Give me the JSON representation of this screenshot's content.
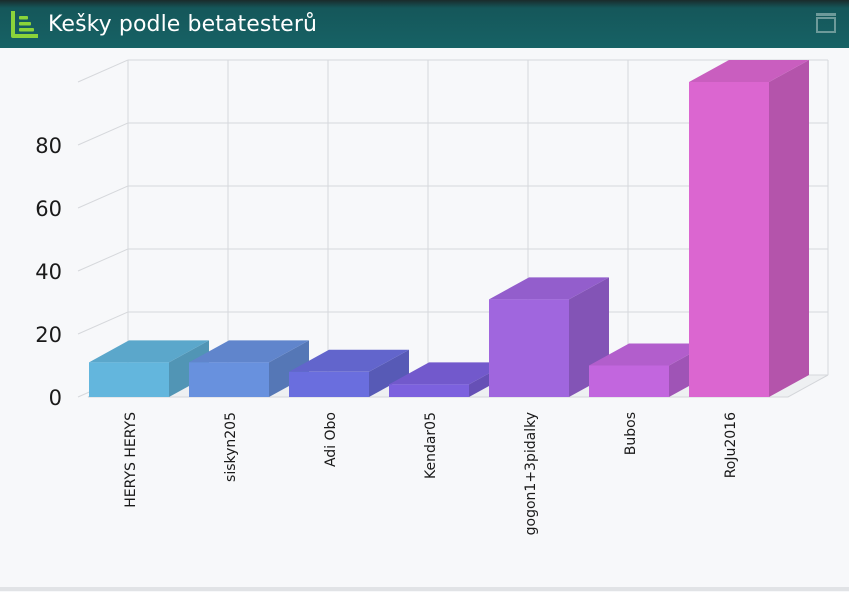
{
  "window": {
    "title": "Kešky podle betatesterů",
    "accent": "#166265",
    "icon": "bar-chart-icon"
  },
  "chart_data": {
    "type": "bar",
    "title": "Kešky podle betatesterů",
    "xlabel": "",
    "ylabel": "",
    "ylim": [
      0,
      100
    ],
    "yticks": [
      0,
      20,
      40,
      60,
      80
    ],
    "grid": true,
    "categories": [
      "HERYS HERYS",
      "siskyn205",
      "Adi Obo",
      "Kendar05",
      "gogon1+3pidalky",
      "Bubos",
      "RoJu2016"
    ],
    "values": [
      11,
      11,
      8,
      4,
      31,
      10,
      100
    ],
    "colors": [
      "#63b6dd",
      "#6891de",
      "#6a6ede",
      "#7c61de",
      "#a066de",
      "#c266de",
      "#db66d0"
    ]
  }
}
